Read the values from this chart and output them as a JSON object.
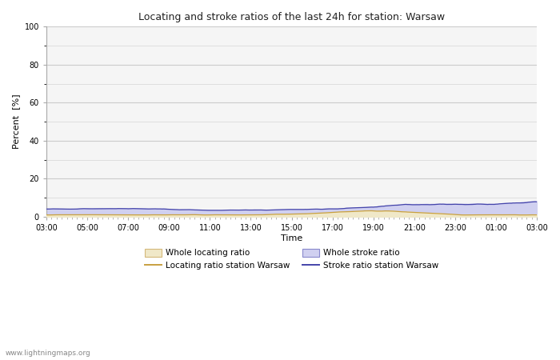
{
  "title": "Locating and stroke ratios of the last 24h for station: Warsaw",
  "xlabel": "Time",
  "ylabel": "Percent  [%]",
  "watermark": "www.lightningmaps.org",
  "ylim": [
    0,
    100
  ],
  "yticks": [
    0,
    20,
    40,
    60,
    80,
    100
  ],
  "yticks_minor": [
    10,
    30,
    50,
    70,
    90
  ],
  "xtick_labels": [
    "03:00",
    "05:00",
    "07:00",
    "09:00",
    "11:00",
    "13:00",
    "15:00",
    "17:00",
    "19:00",
    "21:00",
    "23:00",
    "01:00",
    "03:00"
  ],
  "bg_color": "#ffffff",
  "plot_bg_color": "#f5f5f5",
  "grid_color": "#cccccc",
  "whole_locating_fill": "#f0e8c8",
  "whole_locating_line": "#d4b87a",
  "whole_stroke_fill": "#d0d0f0",
  "whole_stroke_line": "#8888cc",
  "locating_station_color": "#c8a040",
  "stroke_station_color": "#4444aa",
  "legend_labels": [
    "Whole locating ratio",
    "Locating ratio station Warsaw",
    "Whole stroke ratio",
    "Stroke ratio station Warsaw"
  ]
}
